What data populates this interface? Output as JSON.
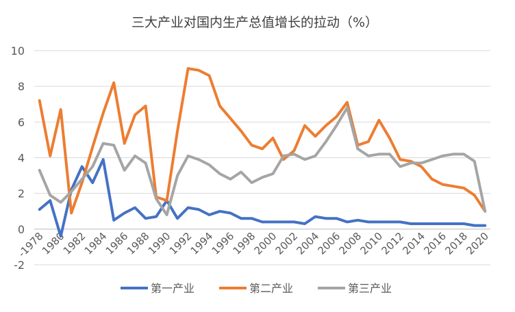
{
  "chart_data": {
    "type": "line",
    "title": "三大产业对国内生产总值增长的拉动（%）",
    "xlabel": "",
    "ylabel": "",
    "ylim": [
      -2,
      10
    ],
    "yticks": [
      -2,
      0,
      2,
      4,
      6,
      8,
      10
    ],
    "grid": true,
    "legend": "bottom",
    "x": [
      1978,
      1979,
      1980,
      1981,
      1982,
      1983,
      1984,
      1985,
      1986,
      1987,
      1988,
      1989,
      1990,
      1991,
      1992,
      1993,
      1994,
      1995,
      1996,
      1997,
      1998,
      1999,
      2000,
      2001,
      2002,
      2003,
      2004,
      2005,
      2006,
      2007,
      2008,
      2009,
      2010,
      2011,
      2012,
      2013,
      2014,
      2015,
      2016,
      2017,
      2018,
      2019,
      2020
    ],
    "xtick_labels": [
      "-1978",
      "1980",
      "1982",
      "1984",
      "1986",
      "1988",
      "1990",
      "1992",
      "1994",
      "1996",
      "1998",
      "2000",
      "2002",
      "2004",
      "2006",
      "2008",
      "2010",
      "2012",
      "2014",
      "2016",
      "2018",
      "2020"
    ],
    "series": [
      {
        "name": "第一产业",
        "color": "#4472C4",
        "values": [
          1.1,
          1.6,
          -0.4,
          2.2,
          3.5,
          2.6,
          3.9,
          0.5,
          0.9,
          1.2,
          0.6,
          0.7,
          1.6,
          0.6,
          1.2,
          1.1,
          0.8,
          1.0,
          0.9,
          0.6,
          0.6,
          0.4,
          0.4,
          0.4,
          0.4,
          0.3,
          0.7,
          0.6,
          0.6,
          0.4,
          0.5,
          0.4,
          0.4,
          0.4,
          0.4,
          0.3,
          0.3,
          0.3,
          0.3,
          0.3,
          0.3,
          0.2,
          0.2
        ]
      },
      {
        "name": "第二产业",
        "color": "#ED7D31",
        "values": [
          7.2,
          4.1,
          6.7,
          0.9,
          2.6,
          4.6,
          6.5,
          8.2,
          4.8,
          6.4,
          6.9,
          1.8,
          1.6,
          5.5,
          9.0,
          8.9,
          8.6,
          6.9,
          6.2,
          5.5,
          4.7,
          4.5,
          5.1,
          3.9,
          4.4,
          5.8,
          5.2,
          5.8,
          6.3,
          7.1,
          4.7,
          4.9,
          6.1,
          5.1,
          3.9,
          3.8,
          3.5,
          2.8,
          2.5,
          2.4,
          2.3,
          1.9,
          1.0
        ]
      },
      {
        "name": "第三产业",
        "color": "#A5A5A5",
        "values": [
          3.3,
          1.9,
          1.5,
          2.1,
          2.8,
          3.5,
          4.8,
          4.7,
          3.3,
          4.1,
          3.7,
          1.7,
          0.8,
          3.0,
          4.1,
          3.9,
          3.6,
          3.1,
          2.8,
          3.2,
          2.6,
          2.9,
          3.1,
          4.1,
          4.2,
          3.9,
          4.1,
          4.9,
          5.8,
          6.8,
          4.5,
          4.1,
          4.2,
          4.2,
          3.5,
          3.7,
          3.7,
          3.9,
          4.1,
          4.2,
          4.2,
          3.8,
          1.0
        ]
      }
    ]
  }
}
